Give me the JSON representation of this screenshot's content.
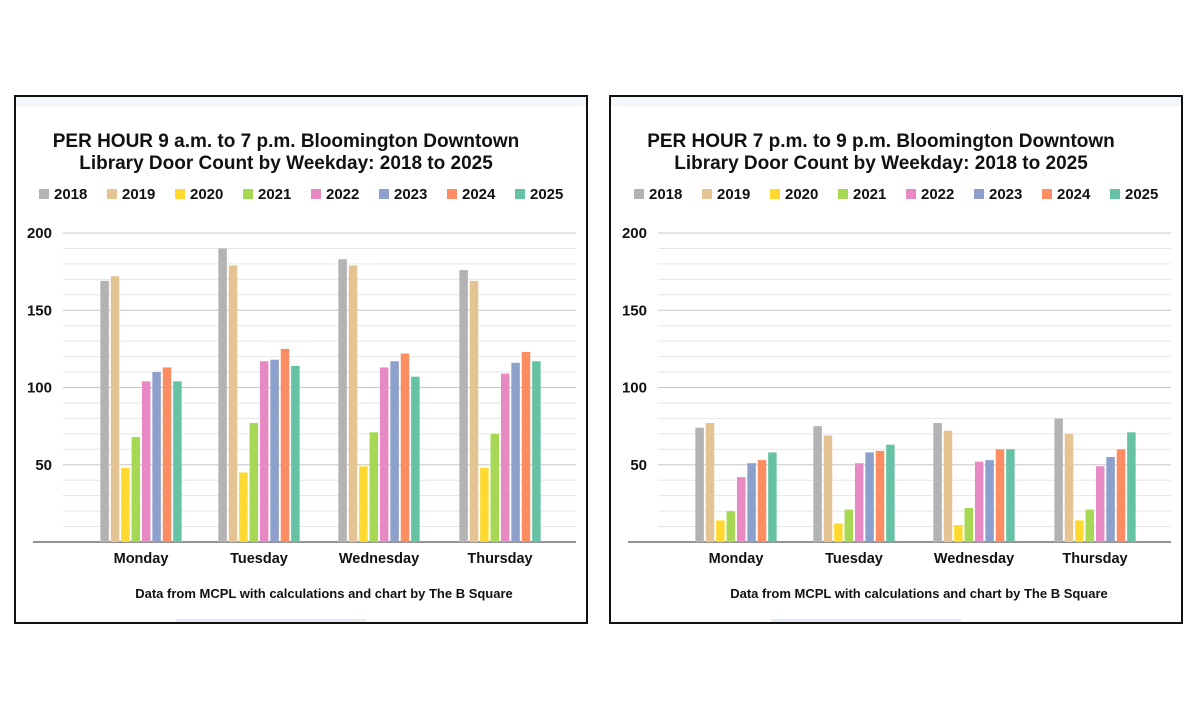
{
  "chart_data": [
    {
      "type": "bar",
      "title_lines": [
        "PER HOUR 9 a.m. to 7 p.m. Bloomington Downtown",
        "Library Door Count by Weekday: 2018 to 2025"
      ],
      "categories": [
        "Monday",
        "Tuesday",
        "Wednesday",
        "Thursday"
      ],
      "series": [
        {
          "name": "2018",
          "color": "#b3b3b3",
          "values": [
            169,
            190,
            183,
            176
          ]
        },
        {
          "name": "2019",
          "color": "#e5c494",
          "values": [
            172,
            179,
            179,
            169
          ]
        },
        {
          "name": "2020",
          "color": "#ffd92f",
          "values": [
            48,
            45,
            49,
            48
          ]
        },
        {
          "name": "2021",
          "color": "#a6d854",
          "values": [
            68,
            77,
            71,
            70
          ]
        },
        {
          "name": "2022",
          "color": "#e78ac3",
          "values": [
            104,
            117,
            113,
            109
          ]
        },
        {
          "name": "2023",
          "color": "#8da0cb",
          "values": [
            110,
            118,
            117,
            116
          ]
        },
        {
          "name": "2024",
          "color": "#fc8d62",
          "values": [
            113,
            125,
            122,
            123
          ]
        },
        {
          "name": "2025",
          "color": "#66c2a5",
          "values": [
            104,
            114,
            107,
            117
          ]
        }
      ],
      "yticks": [
        "50",
        "100",
        "150",
        "200"
      ],
      "ylim": [
        0,
        200
      ],
      "grid": true,
      "legend_position": "top",
      "footnote": "Data from MCPL with calculations and chart by The B Square"
    },
    {
      "type": "bar",
      "title_lines": [
        "PER HOUR 7 p.m. to 9 p.m. Bloomington Downtown",
        "Library Door Count by Weekday: 2018 to 2025"
      ],
      "categories": [
        "Monday",
        "Tuesday",
        "Wednesday",
        "Thursday"
      ],
      "series": [
        {
          "name": "2018",
          "color": "#b3b3b3",
          "values": [
            74,
            75,
            77,
            80
          ]
        },
        {
          "name": "2019",
          "color": "#e5c494",
          "values": [
            77,
            69,
            72,
            70
          ]
        },
        {
          "name": "2020",
          "color": "#ffd92f",
          "values": [
            14,
            12,
            11,
            14
          ]
        },
        {
          "name": "2021",
          "color": "#a6d854",
          "values": [
            20,
            21,
            22,
            21
          ]
        },
        {
          "name": "2022",
          "color": "#e78ac3",
          "values": [
            42,
            51,
            52,
            49
          ]
        },
        {
          "name": "2023",
          "color": "#8da0cb",
          "values": [
            51,
            58,
            53,
            55
          ]
        },
        {
          "name": "2024",
          "color": "#fc8d62",
          "values": [
            53,
            59,
            60,
            60
          ]
        },
        {
          "name": "2025",
          "color": "#66c2a5",
          "values": [
            58,
            63,
            60,
            71
          ]
        }
      ],
      "yticks": [
        "50",
        "100",
        "150",
        "200"
      ],
      "ylim": [
        0,
        200
      ],
      "grid": true,
      "legend_position": "top",
      "footnote": "Data from MCPL with calculations and chart by The B Square"
    }
  ]
}
